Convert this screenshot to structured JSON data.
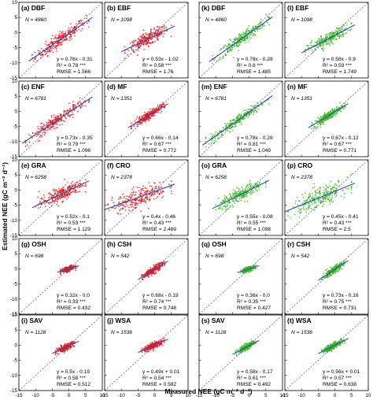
{
  "figure": {
    "xlabel": "Measured NEE (gC m⁻² d⁻¹)",
    "ylabel": "Estimated NEE (gC m⁻² d⁻¹)",
    "ticks": [
      -15,
      -10,
      -5,
      0,
      5,
      10
    ],
    "series_colors": {
      "left_block": "#e8161d",
      "right_block": "#39b91f",
      "fit_line": "#2f4fb8",
      "one_to_one": "#555555"
    }
  },
  "chart_data": [
    {
      "label": "(a) DBF",
      "row": 0,
      "col": 0,
      "color": "red",
      "n": "N = 4860",
      "eq": "y = 0.76x - 0.31",
      "slope": 0.76,
      "intercept": -0.31,
      "r2": "R² = 0.78 ***",
      "rmse": "RMSE = 1.566",
      "spread": 1.2,
      "xmin": -11,
      "xmax": 6
    },
    {
      "label": "(b) EBF",
      "row": 0,
      "col": 1,
      "color": "red",
      "n": "N = 1098",
      "eq": "y = 0.53x - 1.02",
      "slope": 0.53,
      "intercept": -1.02,
      "r2": "R² = 0.58 ***",
      "rmse": "RMSE = 1.76",
      "spread": 1.1,
      "xmin": -9,
      "xmax": 5
    },
    {
      "label": "(k) DBF",
      "row": 0,
      "col": 2,
      "color": "green",
      "n": "N = 4860",
      "eq": "y = 0.78x - 0.28",
      "slope": 0.78,
      "intercept": -0.28,
      "r2": "R² = 0.8 ***",
      "rmse": "RMSE = 1.485",
      "spread": 1.1,
      "xmin": -11,
      "xmax": 6
    },
    {
      "label": "(l) EBF",
      "row": 0,
      "col": 3,
      "color": "green",
      "n": "N = 1098",
      "eq": "y = 0.58x - 0.9",
      "slope": 0.58,
      "intercept": -0.9,
      "r2": "R² = 0.59 ***",
      "rmse": "RMSE = 1.749",
      "spread": 1.0,
      "xmin": -9,
      "xmax": 5
    },
    {
      "label": "(c) ENF",
      "row": 1,
      "col": 0,
      "color": "red",
      "n": "N = 6781",
      "eq": "y = 0.73x - 0.35",
      "slope": 0.73,
      "intercept": -0.35,
      "r2": "R² = 0.79 ***",
      "rmse": "RMSE = 1.096",
      "spread": 1.0,
      "xmin": -13,
      "xmax": 6
    },
    {
      "label": "(d) MF",
      "row": 1,
      "col": 1,
      "color": "red",
      "n": "N = 1351",
      "eq": "y = 0.66x - 0.14",
      "slope": 0.66,
      "intercept": -0.14,
      "r2": "R² = 0.67 ***",
      "rmse": "RMSE = 0.772",
      "spread": 0.7,
      "xmin": -7,
      "xmax": 3
    },
    {
      "label": "(m) ENF",
      "row": 1,
      "col": 2,
      "color": "green",
      "n": "N = 6781",
      "eq": "y = 0.78x - 0.28",
      "slope": 0.78,
      "intercept": -0.28,
      "r2": "R² = 0.81 ***",
      "rmse": "RMSE = 1.049",
      "spread": 0.9,
      "xmin": -13,
      "xmax": 6
    },
    {
      "label": "(n) MF",
      "row": 1,
      "col": 3,
      "color": "green",
      "n": "N = 1351",
      "eq": "y = 0.67x - 0.12",
      "slope": 0.67,
      "intercept": -0.12,
      "r2": "R² = 0.67 ***",
      "rmse": "RMSE = 0.771",
      "spread": 0.7,
      "xmin": -7,
      "xmax": 3
    },
    {
      "label": "(e) GRA",
      "row": 2,
      "col": 0,
      "color": "red",
      "n": "N = 6258",
      "eq": "y = 0.52x - 0.1",
      "slope": 0.52,
      "intercept": -0.1,
      "r2": "R² = 0.53 ***",
      "rmse": "RMSE = 1.129",
      "spread": 1.2,
      "xmin": -10,
      "xmax": 5
    },
    {
      "label": "(f) CRO",
      "row": 2,
      "col": 1,
      "color": "red",
      "n": "N = 2378",
      "eq": "y = 0.4x - 0.46",
      "slope": 0.4,
      "intercept": -0.46,
      "r2": "R² = 0.43 ***",
      "rmse": "RMSE = 2.489",
      "spread": 1.6,
      "xmin": -14,
      "xmax": 5
    },
    {
      "label": "(o) GRA",
      "row": 2,
      "col": 2,
      "color": "green",
      "n": "N = 6258",
      "eq": "y = 0.55x - 0.08",
      "slope": 0.55,
      "intercept": -0.08,
      "r2": "R² = 0.55 ***",
      "rmse": "RMSE = 1.098",
      "spread": 1.1,
      "xmin": -10,
      "xmax": 5
    },
    {
      "label": "(p) CRO",
      "row": 2,
      "col": 3,
      "color": "green",
      "n": "N = 2378",
      "eq": "y = 0.45x - 0.41",
      "slope": 0.45,
      "intercept": -0.41,
      "r2": "R² = 0.43 ***",
      "rmse": "RMSE = 2.5",
      "spread": 1.6,
      "xmin": -14,
      "xmax": 5
    },
    {
      "label": "(g) OSH",
      "row": 3,
      "col": 0,
      "color": "red",
      "n": "N = 698",
      "eq": "y = 0.32x - 0.0",
      "slope": 0.32,
      "intercept": 0.0,
      "r2": "R² = 0.33 ***",
      "rmse": "RMSE = 0.432",
      "spread": 0.4,
      "xmin": -2.5,
      "xmax": 2
    },
    {
      "label": "(h) CSH",
      "row": 3,
      "col": 1,
      "color": "red",
      "n": "N = 542",
      "eq": "y = 0.68x - 0.19",
      "slope": 0.68,
      "intercept": -0.19,
      "r2": "R² = 0.74 ***",
      "rmse": "RMSE = 0.748",
      "spread": 0.6,
      "xmin": -4,
      "xmax": 3
    },
    {
      "label": "(q) OSH",
      "row": 3,
      "col": 2,
      "color": "green",
      "n": "N = 698",
      "eq": "y = 0.36x - 0.0",
      "slope": 0.36,
      "intercept": 0.0,
      "r2": "R² = 0.35 ***",
      "rmse": "RMSE = 0.427",
      "spread": 0.4,
      "xmin": -2.5,
      "xmax": 2
    },
    {
      "label": "(r) CSH",
      "row": 3,
      "col": 3,
      "color": "green",
      "n": "N = 542",
      "eq": "y = 0.73x - 0.16",
      "slope": 0.73,
      "intercept": -0.16,
      "r2": "R² = 0.75 ***",
      "rmse": "RMSE = 0.731",
      "spread": 0.6,
      "xmin": -4,
      "xmax": 3
    },
    {
      "label": "(i) SAV",
      "row": 4,
      "col": 0,
      "color": "red",
      "n": "N = 1128",
      "eq": "y = 0.5x - 0.19",
      "slope": 0.5,
      "intercept": -0.19,
      "r2": "R² = 0.58 ***",
      "rmse": "RMSE = 0.512",
      "spread": 0.5,
      "xmin": -4,
      "xmax": 2
    },
    {
      "label": "(j) WSA",
      "row": 4,
      "col": 1,
      "color": "red",
      "n": "N = 1536",
      "eq": "y = 0.49x + 0.01",
      "slope": 0.49,
      "intercept": 0.01,
      "r2": "R² = 0.54 ***",
      "rmse": "RMSE = 0.582",
      "spread": 0.5,
      "xmin": -4,
      "xmax": 3
    },
    {
      "label": "(s) SAV",
      "row": 4,
      "col": 2,
      "color": "green",
      "n": "N = 1128",
      "eq": "y = 0.58x - 0.17",
      "slope": 0.58,
      "intercept": -0.17,
      "r2": "R² = 0.61 ***",
      "rmse": "RMSE = 0.492",
      "spread": 0.5,
      "xmin": -4,
      "xmax": 2
    },
    {
      "label": "(t) WSA",
      "row": 4,
      "col": 3,
      "color": "green",
      "n": "N = 1536",
      "eq": "y = 0.56x + 0.01",
      "slope": 0.56,
      "intercept": 0.01,
      "r2": "R² = 0.57 ***",
      "rmse": "RMSE = 0.638",
      "spread": 0.5,
      "xmin": -4,
      "xmax": 3
    }
  ]
}
